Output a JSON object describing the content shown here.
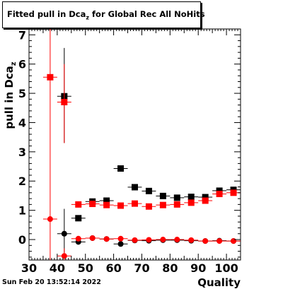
{
  "title": {
    "main": "Fitted pull in Dca",
    "sub": "z",
    "rest": " for Global Rec All NoHits"
  },
  "footer": "Sun Feb 20 13:52:14 2022",
  "chart_data": {
    "type": "scatter",
    "xlabel": "Quality",
    "ylabel": "pull in Dca",
    "ylabel_sub": "z",
    "xlim": [
      30,
      105
    ],
    "ylim": [
      -0.7,
      7.2
    ],
    "xticks": [
      30,
      40,
      50,
      60,
      70,
      80,
      90,
      100
    ],
    "yticks": [
      0,
      1,
      2,
      3,
      4,
      5,
      6,
      7
    ],
    "series": [
      {
        "color": "#000000",
        "marker": "square",
        "points": [
          {
            "x": 42.5,
            "y": 4.9,
            "ylo": 3.3,
            "yhi": 6.55
          },
          {
            "x": 47.5,
            "y": 0.73
          },
          {
            "x": 52.5,
            "y": 1.3
          },
          {
            "x": 57.5,
            "y": 1.33
          },
          {
            "x": 62.5,
            "y": 2.43
          },
          {
            "x": 67.5,
            "y": 1.79
          },
          {
            "x": 72.5,
            "y": 1.66
          },
          {
            "x": 77.5,
            "y": 1.49
          },
          {
            "x": 82.5,
            "y": 1.43
          },
          {
            "x": 87.5,
            "y": 1.46
          },
          {
            "x": 92.5,
            "y": 1.45
          },
          {
            "x": 97.5,
            "y": 1.67
          },
          {
            "x": 102.5,
            "y": 1.7
          }
        ]
      },
      {
        "color": "#ff0000",
        "marker": "square",
        "points": [
          {
            "x": 37.5,
            "y": 5.55,
            "ylo": -0.7,
            "yhi": 7.2
          },
          {
            "x": 42.5,
            "y": 4.7,
            "ylo": 3.3,
            "yhi": 6.0
          },
          {
            "x": 47.5,
            "y": 1.2
          },
          {
            "x": 52.5,
            "y": 1.22
          },
          {
            "x": 57.5,
            "y": 1.18
          },
          {
            "x": 62.5,
            "y": 1.16
          },
          {
            "x": 67.5,
            "y": 1.23
          },
          {
            "x": 72.5,
            "y": 1.13
          },
          {
            "x": 77.5,
            "y": 1.18
          },
          {
            "x": 82.5,
            "y": 1.2
          },
          {
            "x": 87.5,
            "y": 1.26
          },
          {
            "x": 92.5,
            "y": 1.33
          },
          {
            "x": 97.5,
            "y": 1.56
          },
          {
            "x": 102.5,
            "y": 1.6
          }
        ]
      },
      {
        "color": "#000000",
        "marker": "circle",
        "points": [
          {
            "x": 42.5,
            "y": 0.2,
            "ylo": -0.45,
            "yhi": 1.05
          },
          {
            "x": 47.5,
            "y": -0.08
          },
          {
            "x": 52.5,
            "y": 0.05
          },
          {
            "x": 57.5,
            "y": 0.02
          },
          {
            "x": 62.5,
            "y": -0.15
          },
          {
            "x": 67.5,
            "y": -0.03
          },
          {
            "x": 72.5,
            "y": -0.04
          },
          {
            "x": 77.5,
            "y": -0.02
          },
          {
            "x": 82.5,
            "y": -0.02
          },
          {
            "x": 87.5,
            "y": -0.04
          },
          {
            "x": 92.5,
            "y": -0.05
          },
          {
            "x": 97.5,
            "y": -0.04
          },
          {
            "x": 102.5,
            "y": -0.05
          }
        ]
      },
      {
        "color": "#ff0000",
        "marker": "circle",
        "points": [
          {
            "x": 37.5,
            "y": 0.7
          },
          {
            "x": 42.5,
            "y": -0.56,
            "ylo": -0.7,
            "yhi": -0.3
          },
          {
            "x": 47.5,
            "y": 0.03
          },
          {
            "x": 52.5,
            "y": 0.05
          },
          {
            "x": 57.5,
            "y": 0.02
          },
          {
            "x": 62.5,
            "y": 0.03
          },
          {
            "x": 67.5,
            "y": -0.02
          },
          {
            "x": 72.5,
            "y": -0.01
          },
          {
            "x": 77.5,
            "y": 0.0
          },
          {
            "x": 82.5,
            "y": 0.0
          },
          {
            "x": 87.5,
            "y": -0.02
          },
          {
            "x": 92.5,
            "y": -0.05
          },
          {
            "x": 97.5,
            "y": -0.05
          },
          {
            "x": 102.5,
            "y": -0.05
          }
        ]
      }
    ]
  }
}
